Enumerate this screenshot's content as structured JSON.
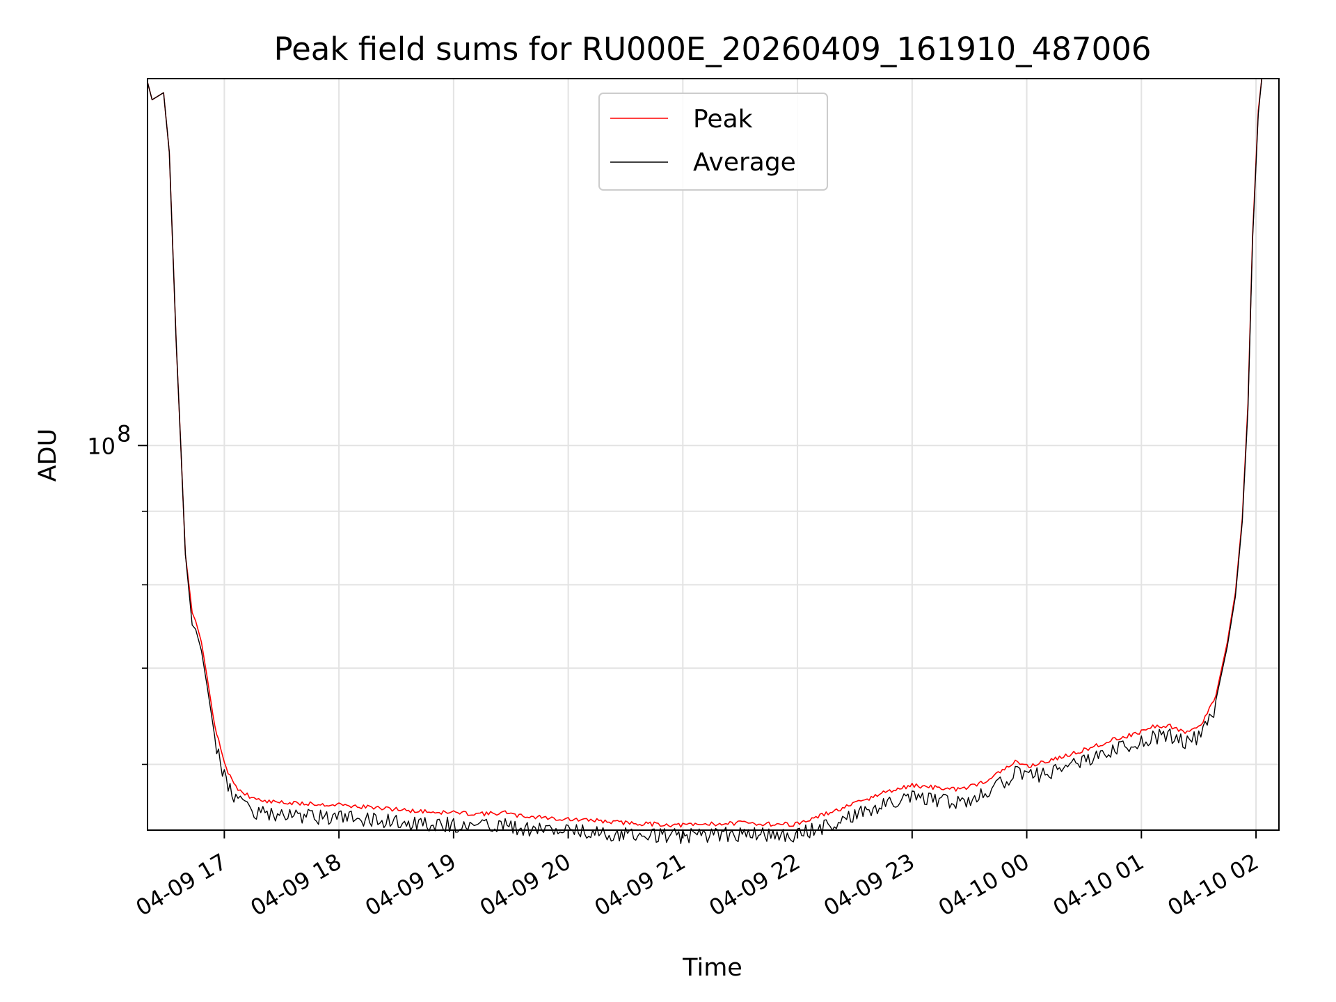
{
  "chart_data": {
    "type": "line",
    "title": "Peak field sums for RU000E_20260409_161910_487006",
    "xlabel": "Time",
    "ylabel": "ADU",
    "y_scale": "log",
    "ylim": [
      54000000,
      180000000
    ],
    "xlim_hours": [
      16.33,
      26.2
    ],
    "y_tick_label": "10",
    "y_tick_exponent": "8",
    "y_tick_value": 100000000,
    "y_minor_ticks": [
      60000000,
      70000000,
      80000000,
      90000000,
      200000000
    ],
    "x_ticks": [
      {
        "label": "04-09 17",
        "hours": 17
      },
      {
        "label": "04-09 18",
        "hours": 18
      },
      {
        "label": "04-09 19",
        "hours": 19
      },
      {
        "label": "04-09 20",
        "hours": 20
      },
      {
        "label": "04-09 21",
        "hours": 21
      },
      {
        "label": "04-09 22",
        "hours": 22
      },
      {
        "label": "04-09 23",
        "hours": 23
      },
      {
        "label": "04-10 00",
        "hours": 24
      },
      {
        "label": "04-10 01",
        "hours": 25
      },
      {
        "label": "04-10 02",
        "hours": 26
      }
    ],
    "legend": {
      "position": "upper-center",
      "entries": [
        {
          "label": "Peak",
          "color": "#ff0000"
        },
        {
          "label": "Average",
          "color": "#000000"
        }
      ]
    },
    "series": [
      {
        "name": "Peak",
        "color": "#ff0000",
        "hours": [
          16.33,
          16.37,
          16.42,
          16.47,
          16.52,
          16.58,
          16.62,
          16.66,
          16.72,
          16.75,
          16.8,
          16.85,
          16.9,
          16.95,
          17.0,
          17.05,
          17.1,
          17.2,
          17.3,
          17.5,
          17.75,
          18.0,
          18.25,
          18.5,
          18.75,
          19.0,
          19.25,
          19.45,
          19.5,
          19.75,
          20.0,
          20.25,
          20.5,
          20.75,
          21.0,
          21.25,
          21.5,
          21.75,
          22.0,
          22.25,
          22.5,
          22.75,
          23.0,
          23.2,
          23.4,
          23.6,
          23.75,
          23.9,
          24.0,
          24.25,
          24.5,
          24.75,
          25.0,
          25.1,
          25.25,
          25.4,
          25.5,
          25.65,
          25.75,
          25.82,
          25.88,
          25.93,
          25.97,
          26.02,
          26.05
        ],
        "values": [
          179000000,
          174000000,
          175000000,
          176000000,
          160000000,
          118000000,
          100000000,
          84000000,
          76500000,
          75500000,
          73000000,
          69000000,
          65000000,
          62500000,
          60200000,
          59000000,
          58000000,
          57300000,
          56800000,
          56600000,
          56500000,
          56400000,
          56200000,
          56000000,
          55800000,
          55700000,
          55600000,
          55700000,
          55500000,
          55300000,
          55100000,
          55000000,
          54800000,
          54700000,
          54600000,
          54700000,
          54800000,
          54700000,
          54700000,
          55600000,
          56500000,
          57500000,
          58200000,
          58000000,
          57800000,
          58400000,
          59300000,
          60400000,
          60000000,
          60700000,
          61600000,
          62600000,
          63400000,
          63900000,
          64000000,
          63300000,
          63800000,
          67000000,
          73000000,
          79000000,
          89000000,
          107000000,
          140000000,
          171000000,
          180000000
        ]
      },
      {
        "name": "Average",
        "color": "#000000",
        "hours": [
          16.33,
          16.37,
          16.42,
          16.47,
          16.52,
          16.58,
          16.62,
          16.66,
          16.72,
          16.75,
          16.8,
          16.85,
          16.9,
          16.95,
          17.0,
          17.05,
          17.1,
          17.2,
          17.3,
          17.5,
          17.75,
          18.0,
          18.25,
          18.5,
          18.75,
          19.0,
          19.25,
          19.45,
          19.5,
          19.75,
          20.0,
          20.25,
          20.5,
          20.75,
          21.0,
          21.25,
          21.5,
          21.75,
          22.0,
          22.25,
          22.5,
          22.75,
          23.0,
          23.2,
          23.4,
          23.6,
          23.75,
          23.9,
          24.0,
          24.25,
          24.5,
          24.75,
          25.0,
          25.1,
          25.25,
          25.4,
          25.5,
          25.65,
          25.75,
          25.82,
          25.88,
          25.93,
          25.97,
          26.02,
          26.05
        ],
        "values": [
          179000000,
          174000000,
          175000000,
          176000000,
          160000000,
          118000000,
          100000000,
          84000000,
          75000000,
          74500000,
          72000000,
          68000000,
          64000000,
          61500000,
          59500000,
          58200000,
          57200000,
          56500000,
          56000000,
          55800000,
          55700000,
          55600000,
          55500000,
          55300000,
          55100000,
          55000000,
          54900000,
          55000000,
          54800000,
          54600000,
          54400000,
          54300000,
          54200000,
          54100000,
          54000000,
          54100000,
          54200000,
          54100000,
          54100000,
          54900000,
          55800000,
          56800000,
          57500000,
          57200000,
          57000000,
          57700000,
          58600000,
          59800000,
          59300000,
          60000000,
          60900000,
          61900000,
          62800000,
          63300000,
          63500000,
          62800000,
          63300000,
          66500000,
          72500000,
          78500000,
          88500000,
          106000000,
          139000000,
          170000000,
          180000000
        ]
      }
    ]
  }
}
